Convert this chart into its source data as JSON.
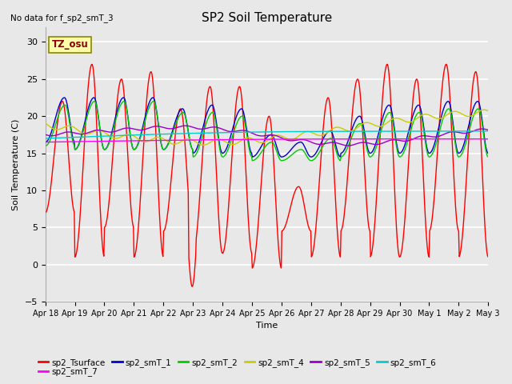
{
  "title": "SP2 Soil Temperature",
  "no_data_text": "No data for f_sp2_smT_3",
  "tz_label": "TZ_osu",
  "ylabel": "Soil Temperature (C)",
  "xlabel": "Time",
  "ylim": [
    -5,
    32
  ],
  "yticks": [
    -5,
    0,
    5,
    10,
    15,
    20,
    25,
    30
  ],
  "x_tick_labels": [
    "Apr 18",
    "Apr 19",
    "Apr 20",
    "Apr 21",
    "Apr 22",
    "Apr 23",
    "Apr 24",
    "Apr 25",
    "Apr 26",
    "Apr 27",
    "Apr 28",
    "Apr 29",
    "Apr 30",
    "May 1",
    "May 2",
    "May 3"
  ],
  "background_color": "#e8e8e8",
  "grid_color": "#ffffff",
  "legend_entries": [
    {
      "label": "sp2_Tsurface",
      "color": "#ff0000"
    },
    {
      "label": "sp2_smT_1",
      "color": "#0000cc"
    },
    {
      "label": "sp2_smT_2",
      "color": "#00cc00"
    },
    {
      "label": "sp2_smT_4",
      "color": "#cccc00"
    },
    {
      "label": "sp2_smT_5",
      "color": "#9900cc"
    },
    {
      "label": "sp2_smT_6",
      "color": "#00cccc"
    },
    {
      "label": "sp2_smT_7",
      "color": "#ff00ff"
    }
  ]
}
